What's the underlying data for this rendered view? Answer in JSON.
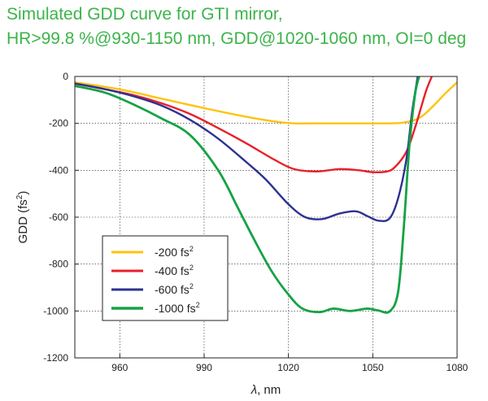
{
  "title_lines": [
    "Simulated GDD curve for GTI mirror,",
    "HR>99.8 %@930-1150 nm, GDD@1020-1060 nm, OI=0 deg"
  ],
  "chart_data": {
    "type": "line",
    "xlabel_symbol": "λ",
    "xlabel_rest": ", nm",
    "ylabel_main": "GDD (fs",
    "ylabel_sup": "2",
    "ylabel_close": ")",
    "xlim": [
      944,
      1080
    ],
    "ylim": [
      -1200,
      0
    ],
    "xticks": [
      960,
      990,
      1020,
      1050,
      1080
    ],
    "yticks": [
      0,
      -200,
      -400,
      -600,
      -800,
      -1000,
      -1200
    ],
    "grid": true,
    "legend_position": "lower-left",
    "series": [
      {
        "name": "-200 fs",
        "name_sup": "2",
        "color": "#ffc20e",
        "x": [
          944,
          960,
          975,
          990,
          1005,
          1015,
          1022,
          1030,
          1040,
          1050,
          1055,
          1060,
          1065,
          1068,
          1072,
          1076,
          1080
        ],
        "y": [
          -25,
          -55,
          -95,
          -135,
          -172,
          -192,
          -200,
          -200,
          -200,
          -200,
          -200,
          -198,
          -185,
          -165,
          -120,
          -70,
          -25
        ]
      },
      {
        "name": "-400 fs",
        "name_sup": "2",
        "color": "#e8202a",
        "x": [
          944,
          955,
          965,
          975,
          985,
          995,
          1005,
          1015,
          1022,
          1030,
          1038,
          1045,
          1050,
          1055,
          1058,
          1062,
          1065,
          1067,
          1069,
          1071
        ],
        "y": [
          -30,
          -55,
          -80,
          -115,
          -160,
          -220,
          -285,
          -355,
          -395,
          -405,
          -395,
          -400,
          -408,
          -405,
          -385,
          -320,
          -220,
          -140,
          -60,
          0
        ]
      },
      {
        "name": "-600 fs",
        "name_sup": "2",
        "color": "#2e3192",
        "x": [
          944,
          955,
          965,
          975,
          985,
          995,
          1005,
          1012,
          1020,
          1026,
          1032,
          1038,
          1044,
          1048,
          1052,
          1056,
          1059,
          1062,
          1064,
          1066
        ],
        "y": [
          -30,
          -55,
          -85,
          -125,
          -185,
          -265,
          -365,
          -440,
          -545,
          -600,
          -608,
          -585,
          -575,
          -595,
          -615,
          -605,
          -520,
          -350,
          -150,
          0
        ]
      },
      {
        "name": "-1000 fs",
        "name_sup": "2",
        "color": "#16a245",
        "x": [
          944,
          955,
          965,
          975,
          985,
          995,
          1002,
          1008,
          1014,
          1020,
          1025,
          1031,
          1036,
          1042,
          1048,
          1052,
          1056,
          1059,
          1061,
          1063,
          1065,
          1066.5
        ],
        "y": [
          -40,
          -70,
          -120,
          -180,
          -250,
          -400,
          -560,
          -700,
          -830,
          -930,
          -990,
          -1005,
          -990,
          -1000,
          -990,
          -998,
          -1002,
          -920,
          -650,
          -300,
          -80,
          0
        ]
      }
    ]
  }
}
